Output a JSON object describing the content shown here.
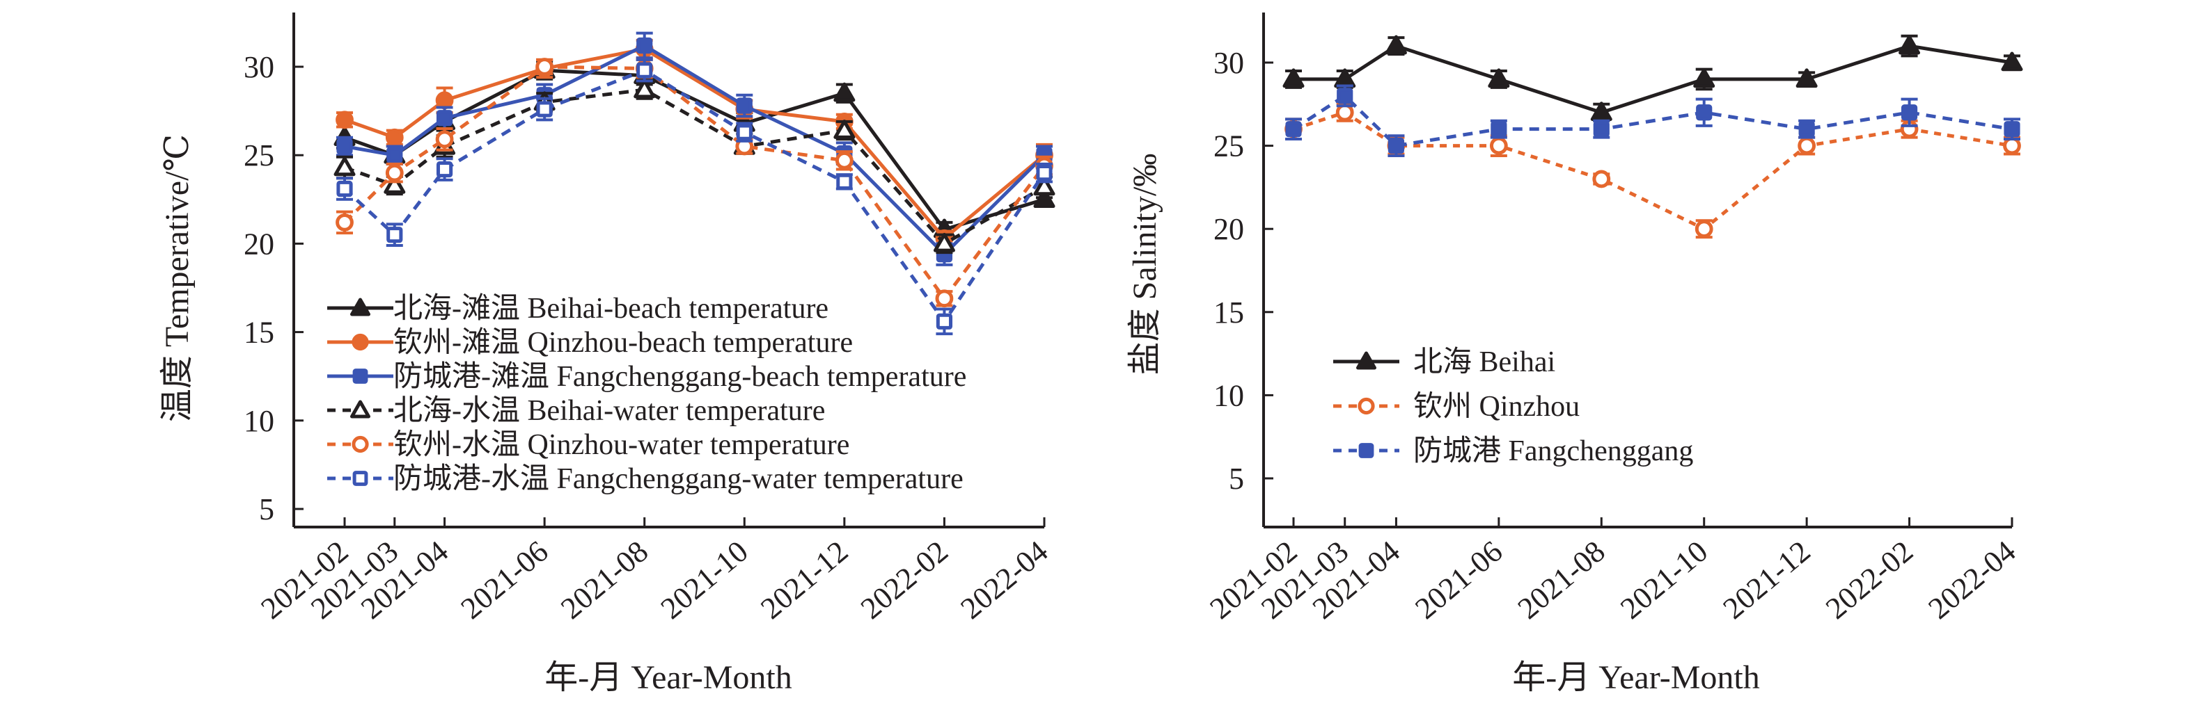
{
  "chart_data": [
    {
      "type": "line",
      "title": "",
      "xlabel": "年-月 Year-Month",
      "ylabel": "温度 Temperative/℃",
      "ylim": [
        2,
        33
      ],
      "yticks": [
        5,
        10,
        15,
        20,
        25,
        30
      ],
      "x_months": [
        0,
        1,
        2,
        4,
        6,
        8,
        10,
        12,
        14
      ],
      "categories": [
        "2021-02",
        "2021-03",
        "2021-04",
        "2021-06",
        "2021-08",
        "2021-10",
        "2021-12",
        "2022-02",
        "2022-04"
      ],
      "grid": false,
      "legend_position": "lower-left",
      "error_bars": true,
      "series": [
        {
          "name": "北海-滩温 Beihai-beach temperature",
          "color": "#231f20",
          "style": "solid",
          "marker": "triangle-filled",
          "values": [
            26.0,
            25.0,
            26.9,
            29.8,
            29.5,
            26.8,
            28.5,
            20.8,
            22.5
          ],
          "errors": [
            0.6,
            0.5,
            0.5,
            0.5,
            0.5,
            0.6,
            0.5,
            0.4,
            0.4
          ]
        },
        {
          "name": "钦州-滩温 Qinzhou-beach temperature",
          "color": "#e5672d",
          "style": "solid",
          "marker": "circle-filled",
          "values": [
            27.0,
            26.0,
            28.1,
            29.9,
            31.0,
            27.6,
            26.9,
            20.3,
            25.0
          ],
          "errors": [
            0.4,
            0.4,
            0.7,
            0.5,
            0.5,
            0.5,
            0.4,
            0.4,
            0.6
          ]
        },
        {
          "name": "防城港-滩温 Fangchenggang-beach temperature",
          "color": "#3a55b4",
          "style": "solid",
          "marker": "square-filled",
          "values": [
            25.5,
            25.0,
            27.1,
            28.4,
            31.2,
            27.8,
            25.1,
            19.4,
            25.0
          ],
          "errors": [
            0.5,
            0.5,
            0.6,
            0.6,
            0.7,
            0.6,
            0.6,
            0.6,
            0.5
          ]
        },
        {
          "name": "北海-水温 Beihai-water temperature",
          "color": "#231f20",
          "style": "dashed",
          "marker": "triangle-open",
          "values": [
            24.3,
            23.3,
            25.5,
            28.0,
            28.7,
            25.5,
            26.4,
            20.0,
            23.2
          ],
          "errors": [
            0.6,
            0.5,
            0.6,
            0.5,
            0.5,
            0.4,
            0.5,
            0.5,
            0.6
          ]
        },
        {
          "name": "钦州-水温 Qinzhou-water temperature",
          "color": "#e5672d",
          "style": "dashed",
          "marker": "circle-open",
          "values": [
            21.2,
            24.0,
            25.9,
            30.0,
            29.9,
            25.5,
            24.7,
            16.9,
            24.4
          ],
          "errors": [
            0.6,
            0.5,
            0.6,
            0.4,
            0.5,
            0.4,
            0.5,
            0.4,
            0.5
          ]
        },
        {
          "name": "防城港-水温 Fangchenggang-water temperature",
          "color": "#3a55b4",
          "style": "dashed",
          "marker": "square-open",
          "values": [
            23.1,
            20.5,
            24.2,
            27.6,
            29.8,
            26.3,
            23.5,
            15.6,
            24.0
          ],
          "errors": [
            0.6,
            0.6,
            0.6,
            0.6,
            0.6,
            0.5,
            0.4,
            0.7,
            0.5
          ]
        }
      ]
    },
    {
      "type": "line",
      "title": "",
      "xlabel": "年-月 Year-Month",
      "ylabel": "盐度 Salinity/‰",
      "ylim": [
        2,
        33
      ],
      "yticks": [
        5,
        10,
        15,
        20,
        25,
        30
      ],
      "x_months": [
        0,
        1,
        2,
        4,
        6,
        8,
        10,
        12,
        14
      ],
      "categories": [
        "2021-02",
        "2021-03",
        "2021-04",
        "2021-06",
        "2021-08",
        "2021-10",
        "2021-12",
        "2022-02",
        "2022-04"
      ],
      "grid": false,
      "legend_position": "lower-left",
      "error_bars": true,
      "series": [
        {
          "name": "北海 Beihai",
          "color": "#231f20",
          "style": "solid",
          "marker": "triangle-filled",
          "values": [
            29,
            29,
            31,
            29,
            27,
            29,
            29,
            31,
            30
          ],
          "errors": [
            0.5,
            0.5,
            0.5,
            0.5,
            0.5,
            0.6,
            0.4,
            0.6,
            0.4
          ]
        },
        {
          "name": "钦州 Qinzhou",
          "color": "#e5672d",
          "style": "dotted",
          "marker": "circle-open",
          "values": [
            26,
            27,
            25,
            25,
            23,
            20,
            25,
            26,
            25
          ],
          "errors": [
            0.6,
            0.5,
            0.5,
            0.6,
            0.3,
            0.5,
            0.5,
            0.5,
            0.5
          ]
        },
        {
          "name": "防城港 Fangchenggang",
          "color": "#3a55b4",
          "style": "dashed",
          "marker": "square-filled",
          "values": [
            26,
            28,
            25,
            26,
            26,
            27,
            26,
            27,
            26
          ],
          "errors": [
            0.6,
            0.6,
            0.6,
            0.5,
            0.5,
            0.8,
            0.5,
            0.8,
            0.6
          ]
        }
      ]
    }
  ]
}
